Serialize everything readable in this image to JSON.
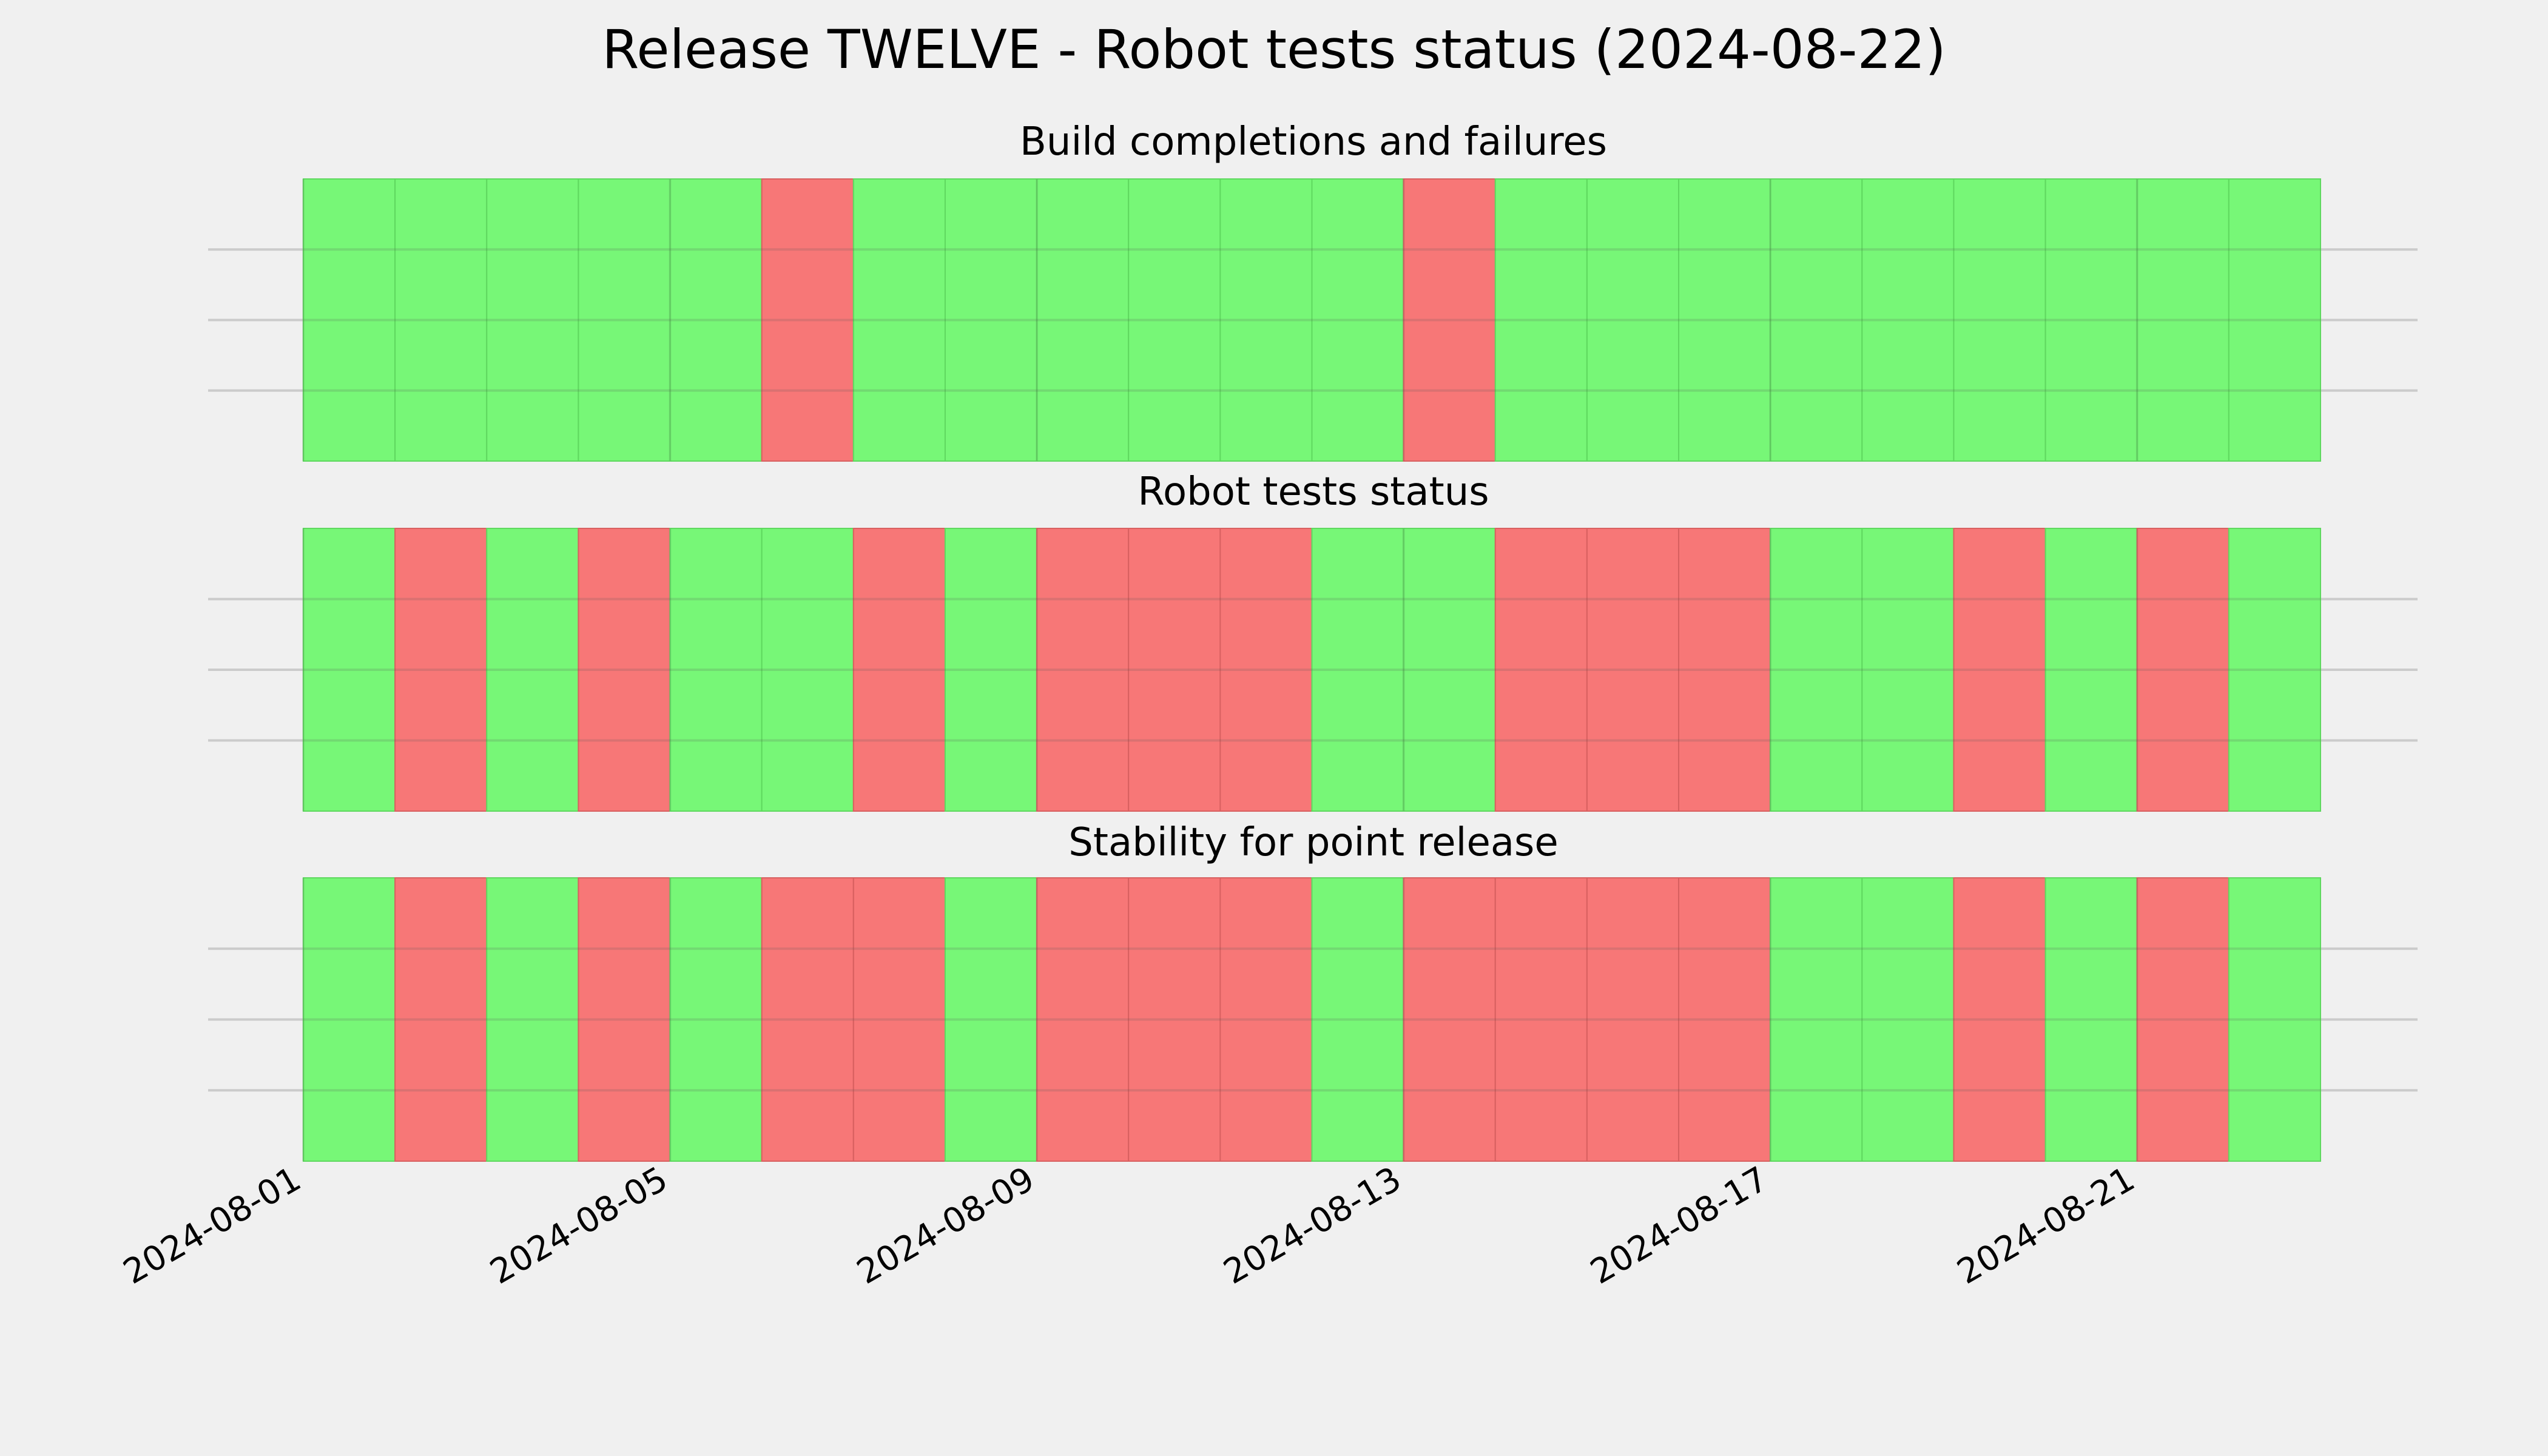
{
  "chart_data": {
    "type": "timeline",
    "title": "Release TWELVE - Robot tests status (2024-08-22)",
    "x_start": "2024-08-01",
    "x_end": "2024-08-23",
    "x_ticks": [
      "2024-08-01",
      "2024-08-05",
      "2024-08-09",
      "2024-08-13",
      "2024-08-17",
      "2024-08-21"
    ],
    "grid": true,
    "colors": {
      "pass": "#77f777",
      "fail": "#f77777",
      "background": "#f0f0f0"
    },
    "panels": [
      {
        "title": "Build completions and failures",
        "days": [
          "2024-08-01",
          "2024-08-02",
          "2024-08-03",
          "2024-08-04",
          "2024-08-05",
          "2024-08-06",
          "2024-08-07",
          "2024-08-08",
          "2024-08-09",
          "2024-08-10",
          "2024-08-11",
          "2024-08-12",
          "2024-08-13",
          "2024-08-14",
          "2024-08-15",
          "2024-08-16",
          "2024-08-17",
          "2024-08-18",
          "2024-08-19",
          "2024-08-20",
          "2024-08-21",
          "2024-08-22"
        ],
        "status": [
          "pass",
          "pass",
          "pass",
          "pass",
          "pass",
          "fail",
          "pass",
          "pass",
          "pass",
          "pass",
          "pass",
          "pass",
          "fail",
          "pass",
          "pass",
          "pass",
          "pass",
          "pass",
          "pass",
          "pass",
          "pass",
          "pass"
        ]
      },
      {
        "title": "Robot tests status",
        "days": [
          "2024-08-01",
          "2024-08-02",
          "2024-08-03",
          "2024-08-04",
          "2024-08-05",
          "2024-08-06",
          "2024-08-07",
          "2024-08-08",
          "2024-08-09",
          "2024-08-10",
          "2024-08-11",
          "2024-08-12",
          "2024-08-13",
          "2024-08-14",
          "2024-08-15",
          "2024-08-16",
          "2024-08-17",
          "2024-08-18",
          "2024-08-19",
          "2024-08-20",
          "2024-08-21",
          "2024-08-22"
        ],
        "status": [
          "pass",
          "fail",
          "pass",
          "fail",
          "pass",
          "pass",
          "fail",
          "pass",
          "fail",
          "fail",
          "fail",
          "pass",
          "pass",
          "fail",
          "fail",
          "fail",
          "pass",
          "pass",
          "fail",
          "pass",
          "fail",
          "pass"
        ]
      },
      {
        "title": "Stability for point release",
        "days": [
          "2024-08-01",
          "2024-08-02",
          "2024-08-03",
          "2024-08-04",
          "2024-08-05",
          "2024-08-06",
          "2024-08-07",
          "2024-08-08",
          "2024-08-09",
          "2024-08-10",
          "2024-08-11",
          "2024-08-12",
          "2024-08-13",
          "2024-08-14",
          "2024-08-15",
          "2024-08-16",
          "2024-08-17",
          "2024-08-18",
          "2024-08-19",
          "2024-08-20",
          "2024-08-21",
          "2024-08-22"
        ],
        "status": [
          "pass",
          "fail",
          "pass",
          "fail",
          "pass",
          "fail",
          "fail",
          "pass",
          "fail",
          "fail",
          "fail",
          "pass",
          "fail",
          "fail",
          "fail",
          "fail",
          "pass",
          "pass",
          "fail",
          "pass",
          "fail",
          "pass"
        ]
      }
    ]
  }
}
